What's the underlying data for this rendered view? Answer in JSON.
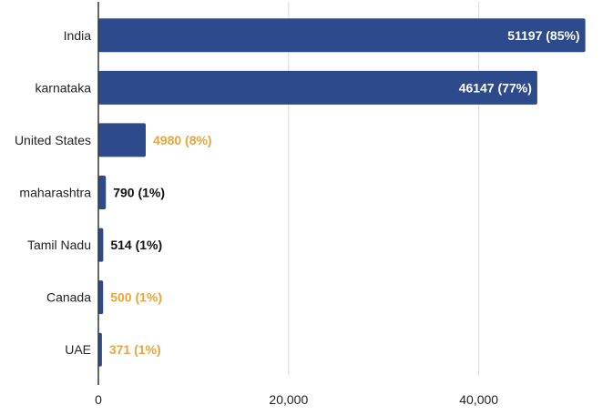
{
  "chart_data": {
    "type": "bar",
    "orientation": "horizontal",
    "categories": [
      "India",
      "karnataka",
      "United States",
      "maharashtra",
      "Tamil Nadu",
      "Canada",
      "UAE"
    ],
    "values": [
      51197,
      46147,
      4980,
      790,
      514,
      500,
      371
    ],
    "data_labels": [
      "51197 (85%)",
      "46147 (77%)",
      "4980 (8%)",
      "790 (1%)",
      "514 (1%)",
      "500 (1%)",
      "371 (1%)"
    ],
    "label_colors": [
      "#ffffff",
      "#ffffff",
      "#e8a53c",
      "#111111",
      "#111111",
      "#e8a53c",
      "#e8a53c"
    ],
    "x_ticks": [
      "0",
      "20,000",
      "40,000"
    ],
    "x_tick_values": [
      0,
      20000,
      40000
    ],
    "xlim": [
      0,
      52000
    ],
    "title": "",
    "xlabel": "",
    "ylabel": "",
    "grid": true,
    "bar_color": "#2c4a8c",
    "grid_color": "#d9d9d9",
    "axis_color": "#333333"
  }
}
